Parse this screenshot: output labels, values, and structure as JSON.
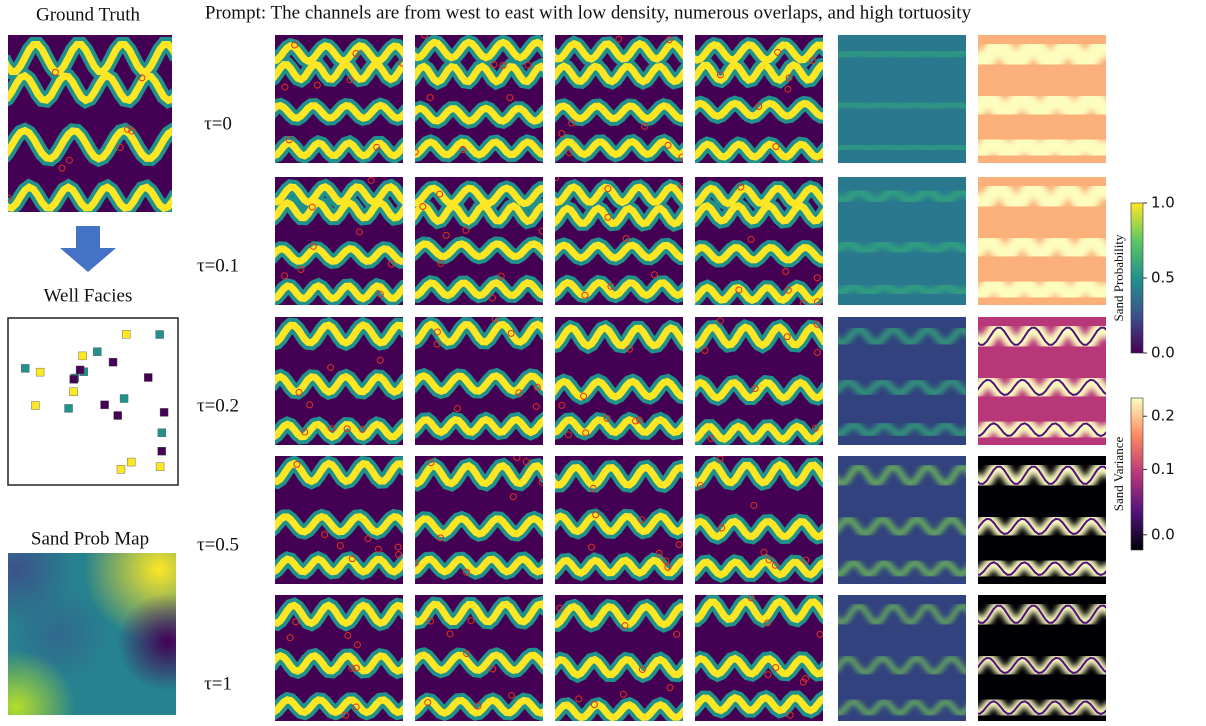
{
  "header": {
    "prompt": "Prompt: The channels are from west to east with low density, numerous overlaps, and high tortuosity"
  },
  "left": {
    "panels": [
      {
        "label": "Ground Truth"
      },
      {
        "label": "Well Facies"
      },
      {
        "label": "Sand Prob Map"
      }
    ]
  },
  "rows": [
    {
      "label": "τ=0"
    },
    {
      "label": "τ=0.1"
    },
    {
      "label": "τ=0.2"
    },
    {
      "label": "τ=0.5"
    },
    {
      "label": "τ=1"
    }
  ],
  "colorbars": [
    {
      "label": "Sand Probability",
      "ticks": [
        "1.0",
        "0.5",
        "0.0"
      ]
    },
    {
      "label": "Sand Variance",
      "ticks": [
        "0.2",
        "0.1",
        "0.0"
      ]
    }
  ]
}
